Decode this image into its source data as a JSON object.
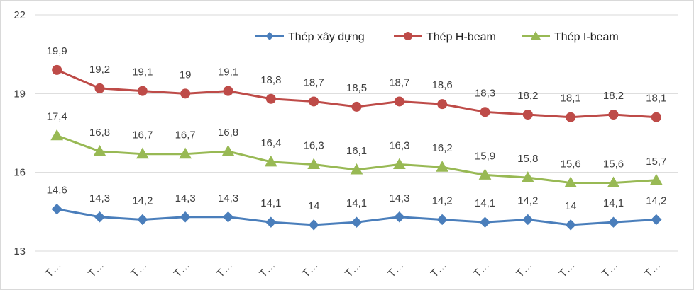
{
  "chart_data": {
    "type": "line",
    "title": "",
    "xlabel": "",
    "ylabel": "",
    "ylim": [
      13,
      22
    ],
    "yticks": [
      13,
      16,
      19,
      22
    ],
    "grid": true,
    "legend_position": "top-right",
    "categories": [
      "T…",
      "T…",
      "T…",
      "T…",
      "T…",
      "T…",
      "T…",
      "T…",
      "T…",
      "T…",
      "T…",
      "T…",
      "T…",
      "T…",
      "T…"
    ],
    "series": [
      {
        "name": "Thép xây dựng",
        "color": "#4a7ebb",
        "marker": "diamond",
        "values": [
          14.6,
          14.3,
          14.2,
          14.3,
          14.3,
          14.1,
          14.0,
          14.1,
          14.3,
          14.2,
          14.1,
          14.2,
          14.0,
          14.1,
          14.2
        ],
        "labels": [
          "14,6",
          "14,3",
          "14,2",
          "14,3",
          "14,3",
          "14,1",
          "14",
          "14,1",
          "14,3",
          "14,2",
          "14,1",
          "14,2",
          "14",
          "14,1",
          "14,2"
        ]
      },
      {
        "name": "Thép H-beam",
        "color": "#be4b48",
        "marker": "circle",
        "values": [
          19.9,
          19.2,
          19.1,
          19.0,
          19.1,
          18.8,
          18.7,
          18.5,
          18.7,
          18.6,
          18.3,
          18.2,
          18.1,
          18.2,
          18.1
        ],
        "labels": [
          "19,9",
          "19,2",
          "19,1",
          "19",
          "19,1",
          "18,8",
          "18,7",
          "18,5",
          "18,7",
          "18,6",
          "18,3",
          "18,2",
          "18,1",
          "18,2",
          "18,1"
        ]
      },
      {
        "name": "Thép I-beam",
        "color": "#98b954",
        "marker": "triangle",
        "values": [
          17.4,
          16.8,
          16.7,
          16.7,
          16.8,
          16.4,
          16.3,
          16.1,
          16.3,
          16.2,
          15.9,
          15.8,
          15.6,
          15.6,
          15.7
        ],
        "labels": [
          "17,4",
          "16,8",
          "16,7",
          "16,7",
          "16,8",
          "16,4",
          "16,3",
          "16,1",
          "16,3",
          "16,2",
          "15,9",
          "15,8",
          "15,6",
          "15,6",
          "15,7"
        ]
      }
    ]
  }
}
